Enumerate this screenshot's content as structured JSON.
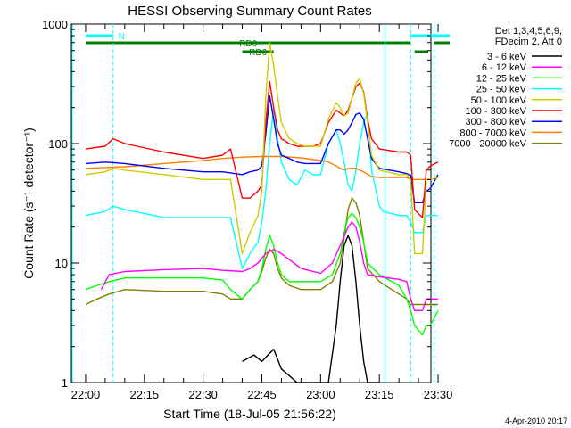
{
  "chart_data": {
    "type": "line",
    "title": "HESSI Observing Summary Count Rates",
    "xlabel": "Start Time (18-Jul-05 21:56:22)",
    "ylabel": "Count Rate (s⁻¹ detector⁻¹)",
    "yscale": "log",
    "ylim": [
      1,
      1000
    ],
    "xlim": [
      "21:56:22",
      "23:34:00"
    ],
    "y_ticks": [
      "1",
      "10",
      "100",
      "1000"
    ],
    "x_ticks": [
      "22:00",
      "22:15",
      "22:30",
      "22:45",
      "23:00",
      "23:15",
      "23:30"
    ],
    "x_tick_minutes": [
      0,
      15,
      30,
      45,
      60,
      75,
      90
    ],
    "legend_header": [
      "Det 1,3,4,5,6,9,",
      "FDecim 2, Att 0"
    ],
    "legend_position": "right",
    "footer_date": "4-Apr-2010 20:17",
    "flags": [
      {
        "label": "N",
        "color": "#00ffff",
        "start_min": 0,
        "end_min": 7
      },
      {
        "label": "RD0",
        "color": "#008000",
        "start_min": 0,
        "end_min": 83
      },
      {
        "label": "RD6",
        "color": "#008000",
        "start_min": 40,
        "end_min": 48
      }
    ],
    "event_lines_min": [
      7,
      76.5,
      83,
      89
    ],
    "series": [
      {
        "name": "3 - 6 keV",
        "color": "#000000",
        "x": [
          40,
          43,
          45,
          48,
          50,
          54,
          62,
          64,
          65,
          66,
          67,
          68,
          69,
          70,
          71,
          72,
          73,
          74,
          75
        ],
        "y": [
          1.5,
          1.7,
          1.5,
          1.9,
          1.3,
          1,
          1,
          3,
          7,
          14,
          17,
          14,
          7,
          3,
          1.5,
          1,
          1,
          1,
          1
        ]
      },
      {
        "name": "6 - 12 keV",
        "color": "#ff00ff",
        "x": [
          4,
          6,
          10,
          20,
          30,
          35,
          40,
          42,
          44,
          46,
          48,
          50,
          55,
          60,
          63,
          65,
          67,
          68,
          69,
          70,
          71,
          72,
          76,
          80,
          82,
          83,
          84,
          86,
          87,
          88,
          90
        ],
        "y": [
          6,
          8,
          8.5,
          8.8,
          9,
          8.7,
          8.5,
          9,
          10,
          12,
          13,
          12,
          9,
          8.2,
          10,
          14,
          20,
          22,
          20,
          15,
          10,
          8,
          7.6,
          7.3,
          7,
          5,
          4,
          4,
          5,
          5,
          5
        ]
      },
      {
        "name": "12 - 25 keV",
        "color": "#00ff00",
        "x": [
          0,
          3,
          6,
          10,
          20,
          30,
          35,
          37,
          40,
          42,
          44,
          45,
          46,
          47,
          48,
          49,
          50,
          52,
          55,
          60,
          63,
          65,
          66,
          67,
          68,
          69,
          70,
          71,
          72,
          75,
          80,
          82,
          83,
          84,
          86,
          87,
          88,
          90
        ],
        "y": [
          6,
          6.5,
          7,
          7.5,
          7.5,
          7.5,
          7.2,
          6,
          5,
          6,
          7,
          9,
          13,
          17,
          14,
          10,
          8,
          7,
          7,
          7,
          8,
          12,
          18,
          24,
          26,
          24,
          20,
          15,
          10,
          8,
          6.5,
          5,
          4,
          3,
          2.5,
          3,
          3,
          4
        ]
      },
      {
        "name": "25 - 50 keV",
        "color": "#00ffff",
        "x": [
          0,
          5,
          7,
          10,
          15,
          20,
          25,
          30,
          35,
          37,
          40,
          42,
          44,
          45,
          46,
          47,
          48,
          49,
          50,
          52,
          54,
          56,
          58,
          60,
          62,
          64,
          65,
          66,
          67,
          68,
          69,
          70,
          71,
          72,
          73,
          75,
          76,
          78,
          80,
          82,
          83,
          84,
          86,
          87,
          88,
          90
        ],
        "y": [
          25,
          27,
          30,
          28,
          26,
          24,
          24,
          24,
          24,
          24,
          9,
          12,
          15,
          22,
          40,
          100,
          200,
          110,
          70,
          50,
          45,
          60,
          55,
          55,
          100,
          130,
          100,
          70,
          45,
          40,
          60,
          100,
          150,
          180,
          60,
          30,
          27,
          26,
          25,
          25,
          22,
          18,
          18,
          25,
          25,
          25
        ]
      },
      {
        "name": "50 - 100 keV",
        "color": "#cccc00",
        "x": [
          0,
          5,
          7,
          10,
          20,
          30,
          35,
          37,
          40,
          42,
          44,
          45,
          46,
          47,
          48,
          49,
          50,
          52,
          54,
          56,
          58,
          60,
          62,
          64,
          65,
          66,
          67,
          68,
          69,
          70,
          71,
          72,
          73,
          75,
          80,
          82,
          83,
          84,
          86,
          87,
          88,
          90
        ],
        "y": [
          55,
          58,
          62,
          60,
          55,
          50,
          50,
          50,
          12,
          18,
          25,
          40,
          250,
          700,
          450,
          250,
          150,
          110,
          100,
          95,
          95,
          95,
          160,
          220,
          200,
          170,
          180,
          240,
          320,
          350,
          260,
          150,
          80,
          60,
          55,
          55,
          50,
          12,
          12,
          50,
          50,
          52
        ]
      },
      {
        "name": "100 - 300 keV",
        "color": "#ff0000",
        "x": [
          0,
          5,
          7,
          10,
          20,
          30,
          35,
          37,
          40,
          42,
          44,
          45,
          46,
          47,
          48,
          49,
          50,
          52,
          54,
          56,
          58,
          60,
          62,
          64,
          65,
          66,
          67,
          68,
          69,
          70,
          71,
          72,
          73,
          75,
          80,
          82,
          83,
          84,
          86,
          87,
          88,
          90
        ],
        "y": [
          90,
          95,
          110,
          100,
          85,
          75,
          80,
          90,
          35,
          35,
          40,
          45,
          150,
          330,
          200,
          130,
          110,
          100,
          95,
          95,
          95,
          100,
          150,
          190,
          180,
          170,
          190,
          240,
          300,
          320,
          270,
          160,
          110,
          90,
          85,
          85,
          80,
          28,
          24,
          60,
          65,
          70
        ]
      },
      {
        "name": "300 - 800 keV",
        "color": "#0000ff",
        "x": [
          0,
          5,
          10,
          20,
          30,
          35,
          40,
          42,
          44,
          45,
          46,
          47,
          48,
          49,
          50,
          52,
          54,
          56,
          58,
          60,
          62,
          64,
          65,
          66,
          67,
          68,
          69,
          70,
          71,
          72,
          73,
          75,
          80,
          82,
          83,
          84,
          86,
          87,
          88,
          90
        ],
        "y": [
          68,
          70,
          68,
          62,
          58,
          58,
          55,
          58,
          60,
          65,
          120,
          250,
          160,
          100,
          80,
          75,
          70,
          68,
          68,
          68,
          100,
          130,
          130,
          120,
          130,
          150,
          175,
          180,
          160,
          110,
          75,
          62,
          58,
          56,
          54,
          32,
          32,
          40,
          42,
          55
        ]
      },
      {
        "name": "800 - 7000 keV",
        "color": "#ff8000",
        "x": [
          0,
          10,
          20,
          30,
          35,
          40,
          45,
          50,
          55,
          60,
          62,
          64,
          65,
          66,
          67,
          68,
          69,
          70,
          71,
          72,
          73,
          75,
          80,
          82,
          83,
          85,
          88,
          90
        ],
        "y": [
          62,
          64,
          68,
          72,
          75,
          77,
          78,
          78,
          76,
          72,
          70,
          65,
          62,
          60,
          62,
          62,
          62,
          60,
          58,
          55,
          53,
          52,
          52,
          52,
          50,
          50,
          50,
          52
        ]
      },
      {
        "name": "7000 - 20000 keV",
        "color": "#808000",
        "x": [
          0,
          3,
          6,
          10,
          20,
          30,
          35,
          37,
          40,
          42,
          44,
          45,
          46,
          47,
          48,
          49,
          50,
          52,
          55,
          60,
          63,
          65,
          66,
          67,
          68,
          69,
          70,
          71,
          72,
          75,
          80,
          82,
          83,
          84,
          86,
          87,
          88,
          90
        ],
        "y": [
          4.5,
          5,
          5.5,
          6,
          5.8,
          5.8,
          5.5,
          5,
          5,
          6,
          7,
          8.5,
          11,
          13,
          12,
          9,
          7.5,
          6.5,
          6,
          6,
          7,
          10,
          16,
          28,
          35,
          32,
          25,
          15,
          9,
          7,
          5.5,
          5,
          4.5,
          4.5,
          4.5,
          4.5,
          4.5,
          4.5
        ]
      }
    ]
  }
}
